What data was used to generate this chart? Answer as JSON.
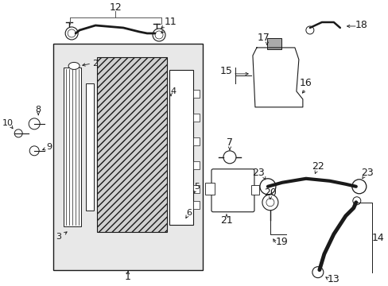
{
  "bg_color": "#ffffff",
  "line_color": "#1a1a1a",
  "box_bg": "#e8e8e8",
  "rad_hatch_color": "#888888",
  "fig_w": 4.89,
  "fig_h": 3.6,
  "dpi": 100
}
